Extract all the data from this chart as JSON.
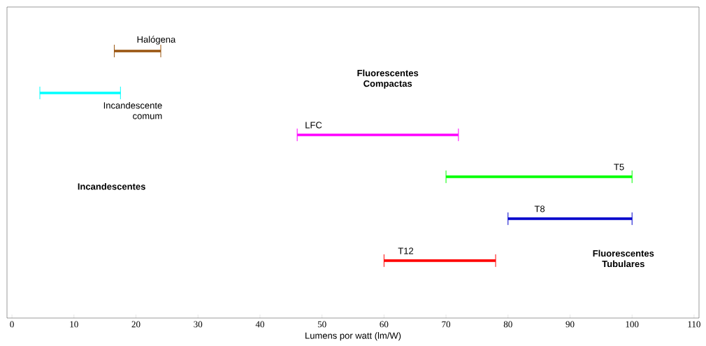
{
  "chart_data": {
    "type": "bar",
    "orientation": "horizontal",
    "xlabel": "Lumens por watt (lm/W)",
    "categories": [
      "Halógena",
      "Incandescente comum",
      "LFC",
      "T5",
      "T8",
      "T12"
    ],
    "base": [
      16.5,
      4.5,
      46,
      70,
      80,
      60
    ],
    "values": [
      7.5,
      13,
      26,
      30,
      20,
      18
    ],
    "colors": [
      "#99540f",
      "#00ffff",
      "#ff00ff",
      "#00ff00",
      "#0000cc",
      "#ff0000"
    ],
    "xlim": [
      -0.8,
      110.8
    ],
    "xticks": [
      0,
      10,
      20,
      30,
      40,
      50,
      60,
      70,
      80,
      90,
      100,
      110
    ],
    "annotations": [
      "Incandescentes",
      "Fluorescentes Compactas",
      "Fluorescentes Tubulares"
    ],
    "grid": false
  }
}
